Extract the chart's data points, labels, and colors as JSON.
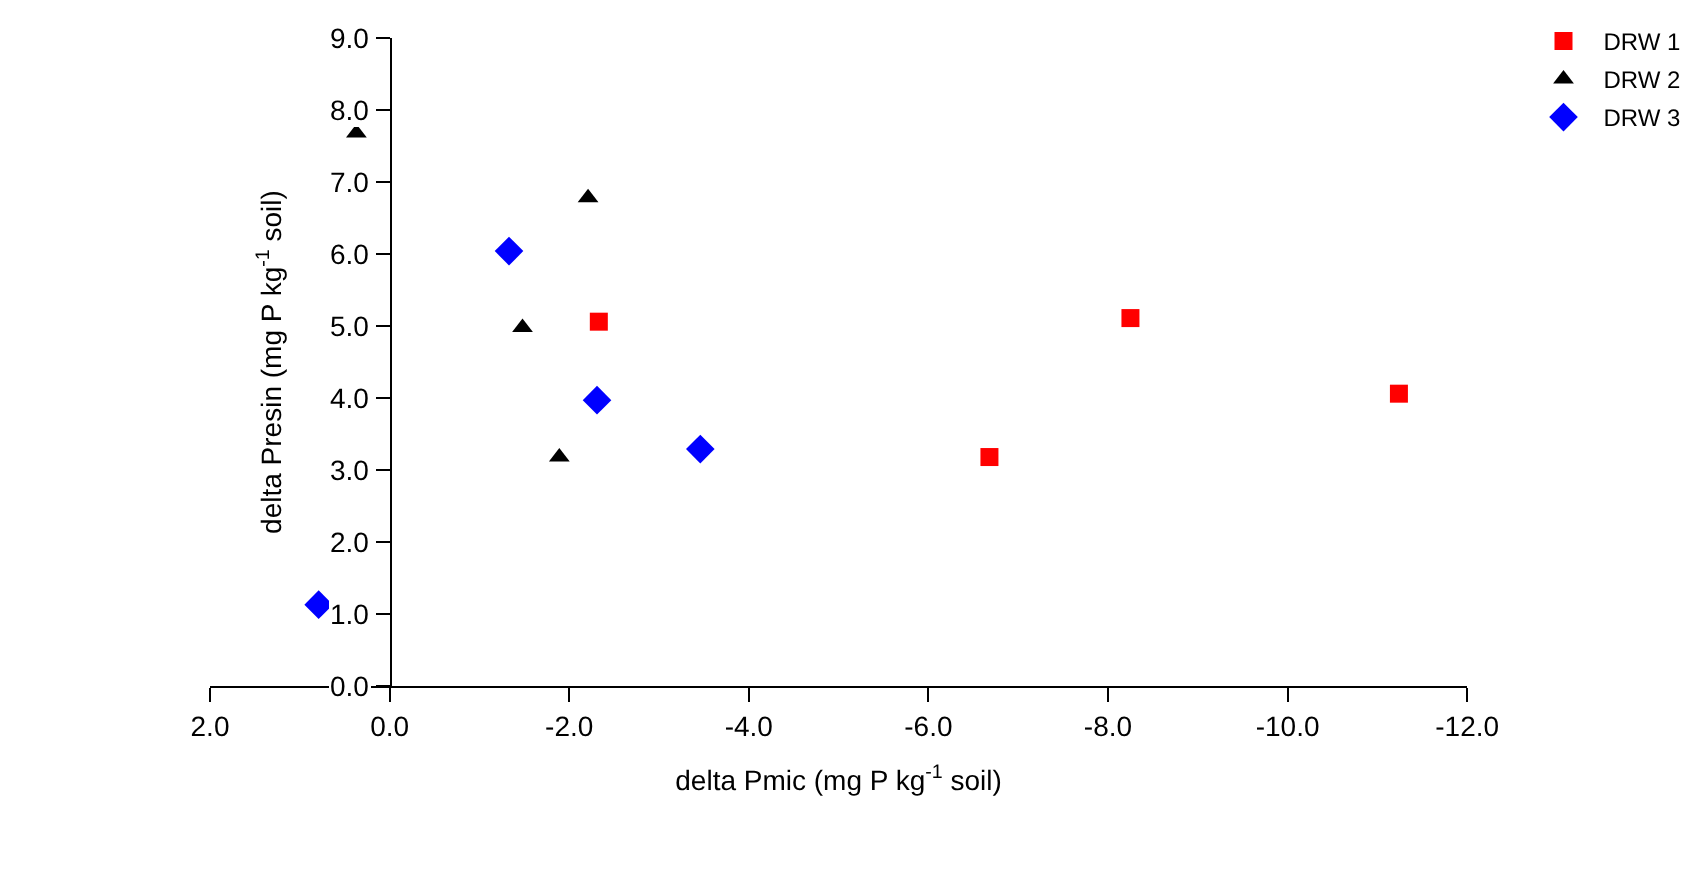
{
  "chart_data": {
    "type": "scatter",
    "xlabel": "delta Pmic (mg P kg$^{-1}$ soil)",
    "ylabel": "delta Presin (mg P kg$^{-1}$ soil)",
    "xlim": [
      2.0,
      -12.0
    ],
    "xticks": [
      {
        "value": 2,
        "label": "2.0"
      },
      {
        "value": 0,
        "label": "0.0"
      },
      {
        "value": -2,
        "label": "-2.0"
      },
      {
        "value": -4,
        "label": "-4.0"
      },
      {
        "value": -6,
        "label": "-6.0"
      },
      {
        "value": -8,
        "label": "-8.0"
      },
      {
        "value": -10,
        "label": "-10.0"
      },
      {
        "value": -12,
        "label": "-12.0"
      }
    ],
    "ylim": [
      0.0,
      9.0
    ],
    "yticks": [
      {
        "value": 0,
        "label": "0.0"
      },
      {
        "value": 1,
        "label": "1.0"
      },
      {
        "value": 2,
        "label": "2.0"
      },
      {
        "value": 3,
        "label": "3.0"
      },
      {
        "value": 4,
        "label": "4.0"
      },
      {
        "value": 5,
        "label": "5.0"
      },
      {
        "value": 6,
        "label": "6.0"
      },
      {
        "value": 7,
        "label": "7.0"
      },
      {
        "value": 8,
        "label": "8.0"
      },
      {
        "value": 9,
        "label": "9.0"
      }
    ],
    "legend": "top right",
    "series": [
      {
        "name": "DRW 1",
        "color": "#ff0000",
        "marker": "square",
        "x": [
          -2.33,
          -8.25,
          -6.68,
          -11.24
        ],
        "values": [
          5.06,
          5.11,
          3.18,
          4.06
        ]
      },
      {
        "name": "DRW 2",
        "color": "#000000",
        "marker": "triangle",
        "x": [
          0.37,
          -2.21,
          -1.48,
          -1.89
        ],
        "values": [
          7.68,
          6.78,
          4.98,
          3.18
        ]
      },
      {
        "name": "DRW 3",
        "color": "#0000ff",
        "marker": "diamond",
        "x": [
          -1.33,
          -2.31,
          -3.46,
          0.79
        ],
        "values": [
          6.04,
          3.97,
          3.29,
          1.13
        ]
      }
    ]
  }
}
